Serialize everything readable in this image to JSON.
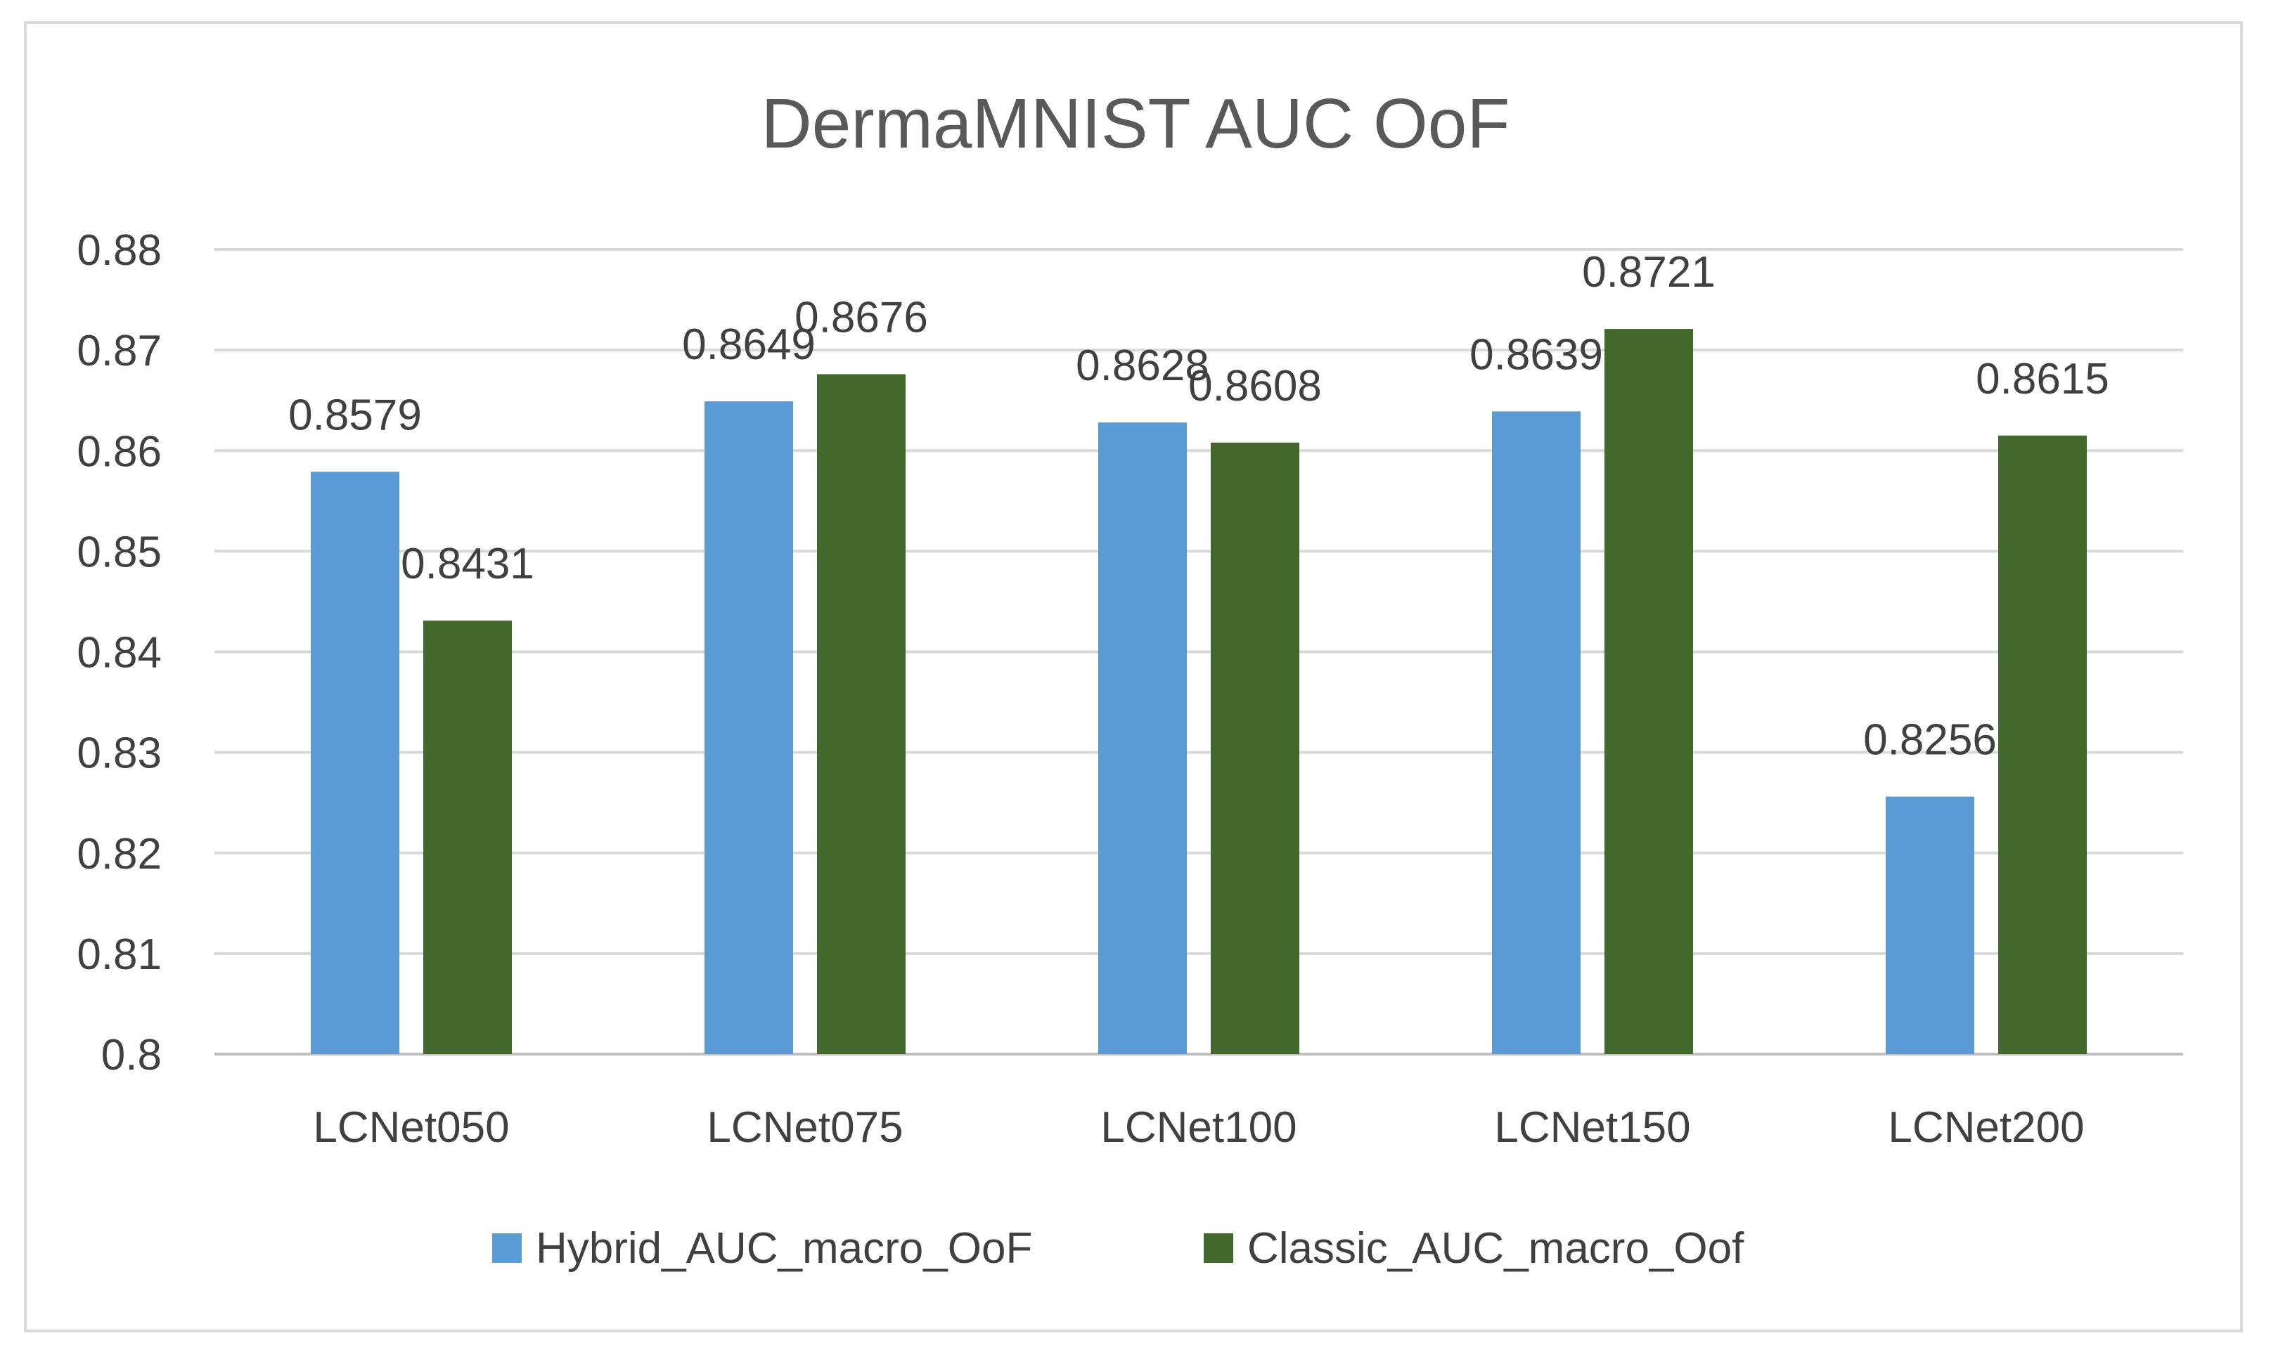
{
  "chart_data": {
    "type": "bar",
    "title": "DermaMNIST AUC OoF",
    "xlabel": "",
    "ylabel": "",
    "ylim": [
      0.8,
      0.88
    ],
    "yticks": [
      0.8,
      0.81,
      0.82,
      0.83,
      0.84,
      0.85,
      0.86,
      0.87,
      0.88
    ],
    "ytick_labels": [
      "0.8",
      "0.81",
      "0.82",
      "0.83",
      "0.84",
      "0.85",
      "0.86",
      "0.87",
      "0.88"
    ],
    "grid": true,
    "legend_position": "bottom",
    "categories": [
      "LCNet050",
      "LCNet075",
      "LCNet100",
      "LCNet150",
      "LCNet200"
    ],
    "series": [
      {
        "name": "Hybrid_AUC_macro_OoF",
        "color": "#5b9bd5",
        "values": [
          0.8579,
          0.8649,
          0.8628,
          0.8639,
          0.8256
        ],
        "labels": [
          "0.8579",
          "0.8649",
          "0.8628",
          "0.8639",
          "0.8256"
        ]
      },
      {
        "name": "Classic_AUC_macro_Oof",
        "color": "#43682b",
        "values": [
          0.8431,
          0.8676,
          0.8608,
          0.8721,
          0.8615
        ],
        "labels": [
          "0.8431",
          "0.8676",
          "0.8608",
          "0.8721",
          "0.8615"
        ]
      }
    ]
  }
}
